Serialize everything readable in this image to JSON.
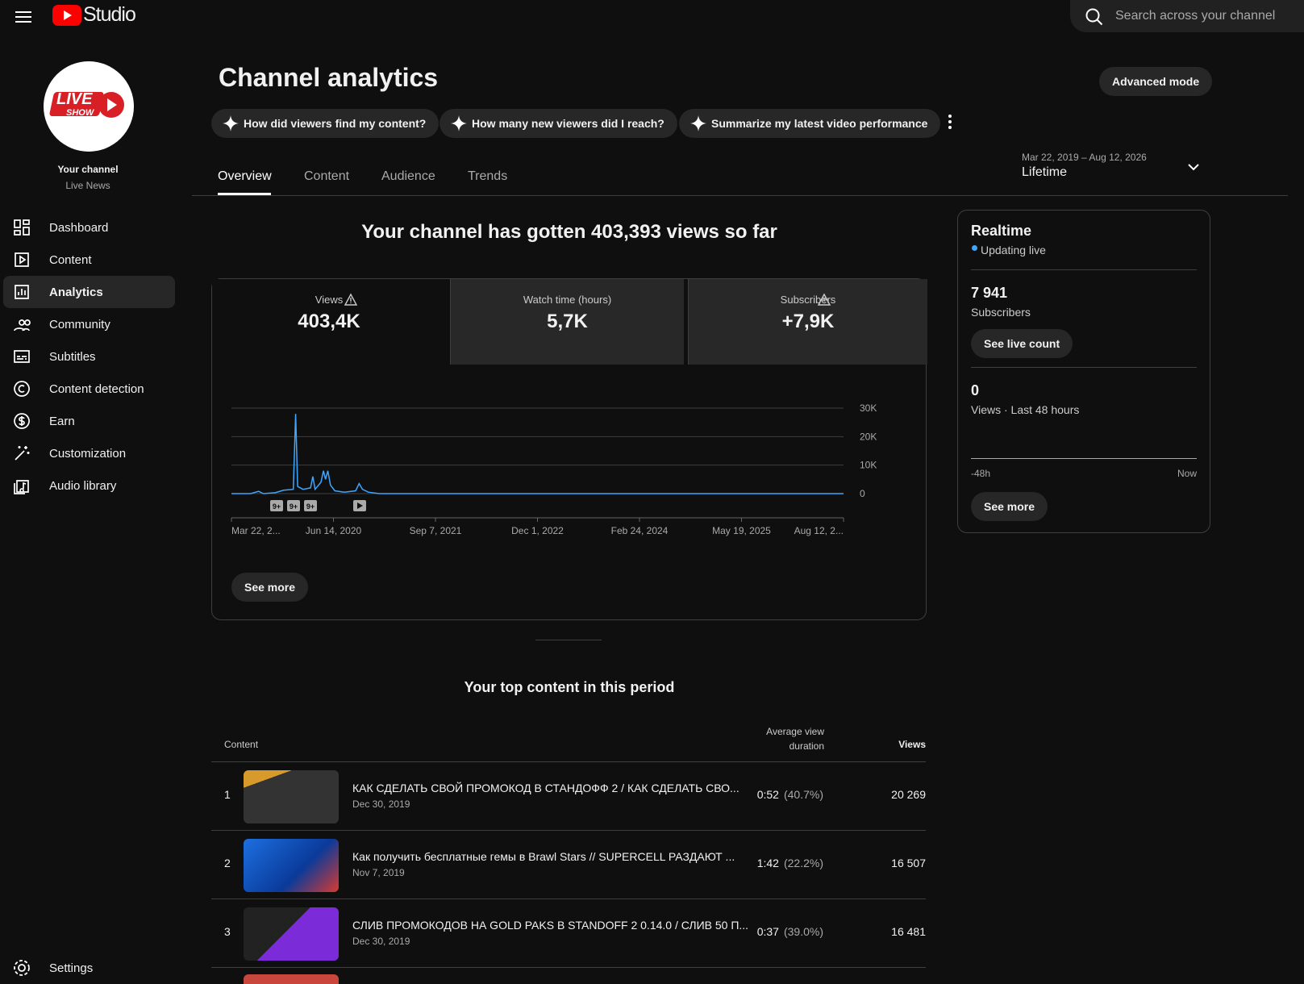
{
  "header": {
    "app": "Studio",
    "search_placeholder": "Search across your channel"
  },
  "sidebar": {
    "avatar_text": [
      "LIVE",
      "SHOW"
    ],
    "channel_title": "Your channel",
    "channel_name": "Live News",
    "nav": [
      "Dashboard",
      "Content",
      "Analytics",
      "Community",
      "Subtitles",
      "Content detection",
      "Earn",
      "Customization",
      "Audio library"
    ],
    "active": 2,
    "settings": "Settings"
  },
  "page": {
    "title": "Channel analytics",
    "advanced": "Advanced mode",
    "prompts": [
      "How did viewers find my content?",
      "How many new viewers did I reach?",
      "Summarize my latest video performance"
    ],
    "tabs": [
      "Overview",
      "Content",
      "Audience",
      "Trends"
    ],
    "active_tab": 0,
    "date_range": {
      "range": "Mar 22, 2019 – Aug 12, 2026",
      "label": "Lifetime"
    },
    "summary": "Your channel has gotten 403,393 views so far",
    "metrics": [
      {
        "label": "Views",
        "value": "403,4K"
      },
      {
        "label": "Watch time (hours)",
        "value": "5,7K"
      },
      {
        "label": "Subscribers",
        "value": "+7,9K"
      }
    ],
    "see_more": "See more"
  },
  "chart_data": {
    "type": "line",
    "color": "#3ea6ff",
    "grid": true,
    "x": [
      "2019-03-22",
      "2019-06-15",
      "2019-07-20",
      "2019-08-10",
      "2019-10-01",
      "2019-11-07",
      "2019-12-20",
      "2019-12-30",
      "2020-01-08",
      "2020-02-01",
      "2020-03-05",
      "2020-03-15",
      "2020-03-25",
      "2020-04-20",
      "2020-05-01",
      "2020-05-10",
      "2020-05-20",
      "2020-06-01",
      "2020-06-20",
      "2020-08-01",
      "2020-09-20",
      "2020-10-05",
      "2020-10-20",
      "2020-11-15",
      "2021-01-01",
      "2026-08-12"
    ],
    "values": [
      0,
      0,
      800,
      0,
      300,
      1200,
      1500,
      28000,
      2500,
      1500,
      2000,
      6000,
      1500,
      4000,
      8000,
      5000,
      8000,
      3000,
      1000,
      500,
      1000,
      3500,
      1500,
      500,
      0,
      0
    ],
    "xlim": [
      "2019-03-22",
      "2026-08-12"
    ],
    "xticks": [
      {
        "value": "2019-03-22",
        "label": "Mar 22, 2..."
      },
      {
        "value": "2020-06-14",
        "label": "Jun 14, 2020"
      },
      {
        "value": "2021-09-07",
        "label": "Sep 7, 2021"
      },
      {
        "value": "2022-12-01",
        "label": "Dec 1, 2022"
      },
      {
        "value": "2024-02-24",
        "label": "Feb 24, 2024"
      },
      {
        "value": "2025-05-19",
        "label": "May 19, 2025"
      },
      {
        "value": "2026-08-12",
        "label": "Aug 12, 2..."
      }
    ],
    "ylim": [
      0,
      30000
    ],
    "yticks": [
      0,
      {
        "value": 10000,
        "label": "10K"
      },
      {
        "value": 20000,
        "label": "20K"
      },
      {
        "value": 30000,
        "label": "30K"
      }
    ],
    "annotations": [
      "9+",
      "9+",
      "9+"
    ]
  },
  "top_content": {
    "title": "Your top content in this period",
    "columns": [
      "Content",
      "Average view duration",
      "Views"
    ],
    "rows": [
      {
        "rank": "1",
        "title": "КАК СДЕЛАТЬ СВОЙ ПРОМОКОД В СТАНДОФФ 2 / КАК СДЕЛАТЬ СВО...",
        "date": "Dec 30, 2019",
        "duration": "0:52",
        "percent": "(40.7%)",
        "views": "20 269"
      },
      {
        "rank": "2",
        "title": "Как получить бесплатные гемы в Brawl Stars // SUPERCELL РАЗДАЮТ ...",
        "date": "Nov 7, 2019",
        "duration": "1:42",
        "percent": "(22.2%)",
        "views": "16 507"
      },
      {
        "rank": "3",
        "title": "СЛИВ ПРОМОКОДОВ НА GOLD PAKS В STANDOFF 2 0.14.0 / СЛИВ 50 П...",
        "date": "Dec 30, 2019",
        "duration": "0:37",
        "percent": "(39.0%)",
        "views": "16 481"
      }
    ]
  },
  "realtime": {
    "title": "Realtime",
    "status": "Updating live",
    "subscribers": "7 941",
    "subscribers_label": "Subscribers",
    "live_count": "See live count",
    "views": "0",
    "views_label": "Views · Last 48 hours",
    "axis": [
      "-48h",
      "Now"
    ],
    "see_more": "See more"
  }
}
